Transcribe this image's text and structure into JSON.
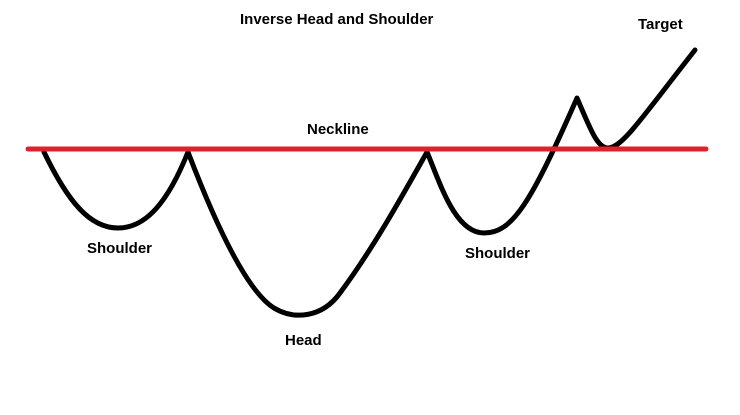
{
  "diagram": {
    "title": "Inverse Head and Shoulder",
    "labels": {
      "target": "Target",
      "neckline": "Neckline",
      "left_shoulder": "Shoulder",
      "head": "Head",
      "right_shoulder": "Shoulder"
    },
    "colors": {
      "background": "#ffffff",
      "price_line": "#000000",
      "neckline": "#e0202a",
      "text": "#000000"
    }
  }
}
